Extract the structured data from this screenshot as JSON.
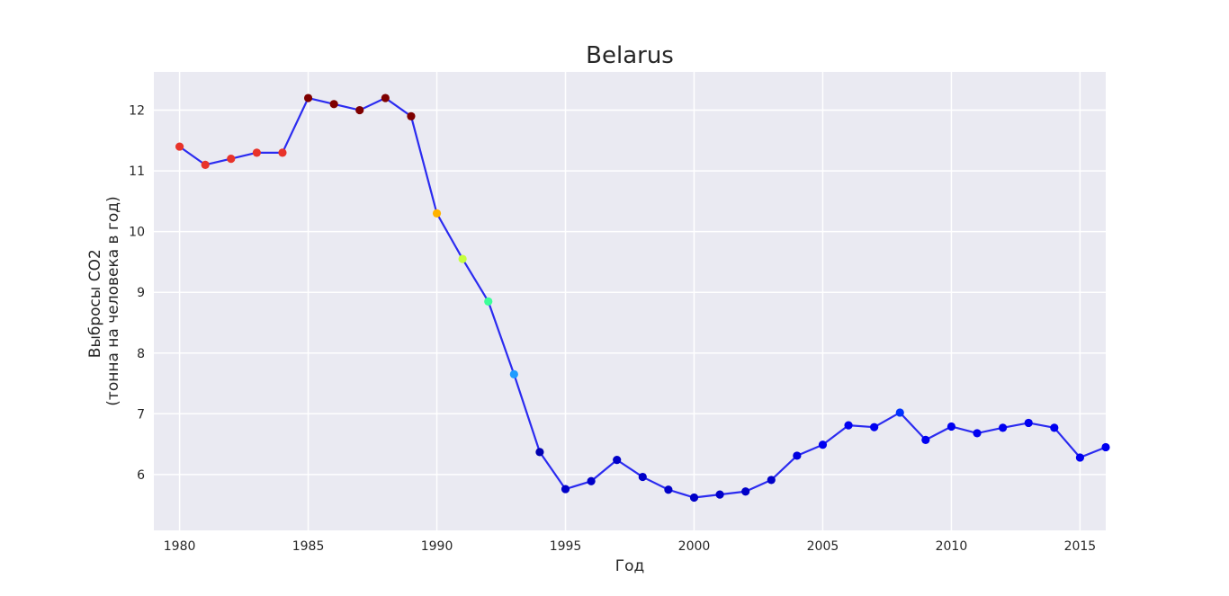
{
  "chart_data": {
    "type": "line",
    "title": "Belarus",
    "xlabel": "Год",
    "ylabel": [
      "Выбросы CO2",
      "(тонна на человека в год)"
    ],
    "xlim": [
      1979,
      2016
    ],
    "ylim": [
      5.08,
      12.63
    ],
    "xticks": [
      1980,
      1985,
      1990,
      1995,
      2000,
      2005,
      2010,
      2015
    ],
    "yticks": [
      6,
      7,
      8,
      9,
      10,
      11,
      12
    ],
    "grid": true,
    "line_color": "#2b2bf0",
    "background": "#eaeaf2",
    "series": [
      {
        "x": [
          1980,
          1981,
          1982,
          1983,
          1984,
          1985,
          1986,
          1987,
          1988,
          1989,
          1990,
          1991,
          1992,
          1993,
          1994,
          1995,
          1996,
          1997,
          1998,
          1999,
          2000,
          2001,
          2002,
          2003,
          2004,
          2005,
          2006,
          2007,
          2008,
          2009,
          2010,
          2011,
          2012,
          2013,
          2014,
          2015,
          2016
        ],
        "values": [
          11.4,
          11.1,
          11.2,
          11.3,
          11.3,
          12.2,
          12.1,
          12.0,
          12.2,
          11.9,
          10.3,
          9.55,
          8.85,
          7.65,
          6.37,
          5.76,
          5.89,
          6.24,
          5.96,
          5.75,
          5.62,
          5.67,
          5.72,
          5.91,
          6.31,
          6.49,
          6.81,
          6.78,
          7.02,
          6.57,
          6.79,
          6.68,
          6.77,
          6.85,
          6.77,
          6.28,
          6.45
        ],
        "point_colors": [
          "#e8332a",
          "#e8332a",
          "#e8332a",
          "#e8332a",
          "#e8332a",
          "#7f0000",
          "#7f0000",
          "#7f0000",
          "#7f0000",
          "#7f0000",
          "#ffb300",
          "#c6ff3c",
          "#3cff98",
          "#1e9cff",
          "#0000b0",
          "#0000c8",
          "#0000c8",
          "#0000c8",
          "#0000c8",
          "#0000c8",
          "#0000c8",
          "#0000c8",
          "#0000c8",
          "#0000c8",
          "#0000e0",
          "#0000f0",
          "#0000f0",
          "#0000f0",
          "#0033ff",
          "#0000f0",
          "#0000f0",
          "#0000f0",
          "#0000f0",
          "#0000f0",
          "#0000f0",
          "#0000f0",
          "#0000f0"
        ]
      }
    ]
  }
}
